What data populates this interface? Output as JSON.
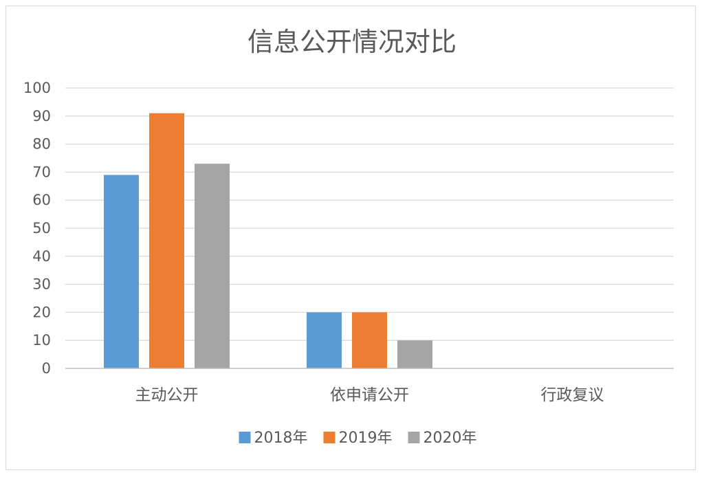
{
  "chart_data": {
    "type": "bar",
    "title": "信息公开情况对比",
    "categories": [
      "主动公开",
      "依申请公开",
      "行政复议"
    ],
    "series": [
      {
        "name": "2018年",
        "values": [
          69,
          20,
          0
        ],
        "color": "#5b9bd5"
      },
      {
        "name": "2019年",
        "values": [
          91,
          20,
          0
        ],
        "color": "#ed7d31"
      },
      {
        "name": "2020年",
        "values": [
          73,
          10,
          0
        ],
        "color": "#a5a5a5"
      }
    ],
    "ylim": [
      0,
      100
    ],
    "yticks": [
      0,
      10,
      20,
      30,
      40,
      50,
      60,
      70,
      80,
      90,
      100
    ],
    "grid": true,
    "legend_position": "bottom"
  }
}
